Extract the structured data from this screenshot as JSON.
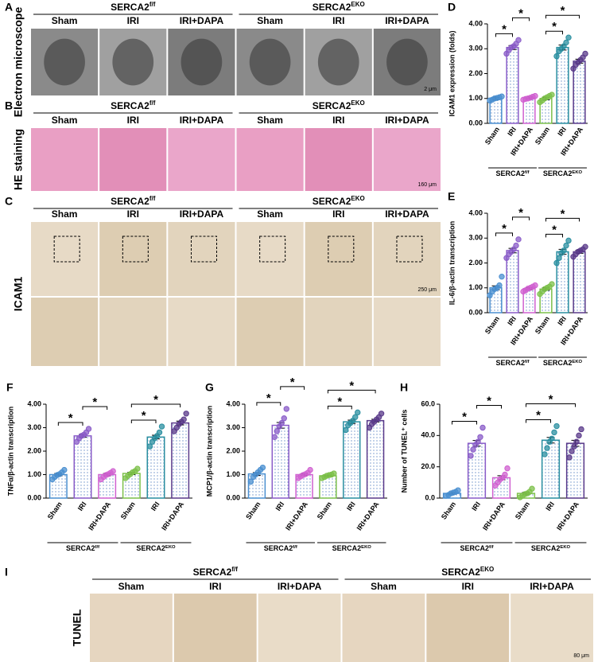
{
  "panels": {
    "A": {
      "letter": "A",
      "side": "Electron microscope",
      "scale": "2 μm"
    },
    "B": {
      "letter": "B",
      "side": "HE staining",
      "scale": "160 μm"
    },
    "C": {
      "letter": "C",
      "side": "ICAM1",
      "scale": "250 μm"
    },
    "I": {
      "letter": "I",
      "side": "TUNEL",
      "scale": "80 μm"
    }
  },
  "groups": [
    {
      "name": "SERCA2",
      "sup": "f/f"
    },
    {
      "name": "SERCA2",
      "sup": "EKO"
    }
  ],
  "conditions": [
    "Sham",
    "IRI",
    "IRI+DAPA"
  ],
  "chart_data": [
    {
      "type": "bar",
      "letter": "D",
      "ylabel": "ICAM1 expression (folds)",
      "categories": [
        "Sham",
        "IRI",
        "IRI+DAPA",
        "Sham",
        "IRI",
        "IRI+DAPA"
      ],
      "groups": [
        {
          "name": "SERCA2",
          "sup": "f/f"
        },
        {
          "name": "SERCA2",
          "sup": "EKO"
        }
      ],
      "colors": [
        "#4a8fd0",
        "#8a5cc8",
        "#d060d0",
        "#7cc04a",
        "#2a8fa0",
        "#5a3a8a"
      ],
      "values": [
        1.0,
        3.05,
        1.02,
        1.0,
        3.05,
        2.5
      ],
      "errors": [
        0.05,
        0.08,
        0.04,
        0.05,
        0.1,
        0.08
      ],
      "points": [
        [
          0.92,
          0.95,
          1.0,
          1.02,
          1.05,
          1.08
        ],
        [
          2.8,
          2.95,
          3.05,
          3.1,
          3.2,
          3.35
        ],
        [
          0.95,
          0.98,
          1.0,
          1.03,
          1.07,
          1.1
        ],
        [
          0.85,
          0.92,
          1.0,
          1.05,
          1.1,
          1.15
        ],
        [
          2.7,
          2.9,
          3.0,
          3.1,
          3.25,
          3.45
        ],
        [
          2.2,
          2.35,
          2.45,
          2.55,
          2.65,
          2.8
        ]
      ],
      "ylim": [
        0,
        4
      ],
      "yticks": [
        {
          "value": 0,
          "label": "0.00"
        },
        {
          "value": 1,
          "label": "1.00"
        },
        {
          "value": 2,
          "label": "2.00"
        },
        {
          "value": 3,
          "label": "3.00"
        },
        {
          "value": 4,
          "label": "4.00"
        }
      ],
      "brackets": [
        {
          "from": 0,
          "to": 1,
          "label": "*"
        },
        {
          "from": 1,
          "to": 2,
          "label": "*"
        },
        {
          "from": 3,
          "to": 4,
          "label": "*"
        },
        {
          "from": 3,
          "to": 5,
          "label": "*"
        }
      ]
    },
    {
      "type": "bar",
      "letter": "E",
      "ylabel": "IL-6/β-actin transcription",
      "categories": [
        "Sham",
        "IRI",
        "IRI+DAPA",
        "Sham",
        "IRI",
        "IRI+DAPA"
      ],
      "groups": [
        {
          "name": "SERCA2",
          "sup": "f/f"
        },
        {
          "name": "SERCA2",
          "sup": "EKO"
        }
      ],
      "colors": [
        "#4a8fd0",
        "#8a5cc8",
        "#d060d0",
        "#7cc04a",
        "#2a8fa0",
        "#5a3a8a"
      ],
      "values": [
        1.0,
        2.5,
        0.97,
        0.95,
        2.45,
        2.45
      ],
      "errors": [
        0.08,
        0.09,
        0.04,
        0.05,
        0.1,
        0.06
      ],
      "points": [
        [
          0.7,
          0.85,
          0.95,
          1.0,
          1.1,
          1.45
        ],
        [
          2.2,
          2.35,
          2.45,
          2.55,
          2.7,
          2.95
        ],
        [
          0.85,
          0.9,
          0.97,
          1.0,
          1.05,
          1.1
        ],
        [
          0.75,
          0.85,
          0.95,
          1.0,
          1.05,
          1.15
        ],
        [
          2.0,
          2.2,
          2.4,
          2.5,
          2.7,
          2.9
        ],
        [
          2.25,
          2.35,
          2.45,
          2.5,
          2.55,
          2.65
        ]
      ],
      "ylim": [
        0,
        4
      ],
      "yticks": [
        {
          "value": 0,
          "label": "0.00"
        },
        {
          "value": 1,
          "label": "1.00"
        },
        {
          "value": 2,
          "label": "2.00"
        },
        {
          "value": 3,
          "label": "3.00"
        },
        {
          "value": 4,
          "label": "4.00"
        }
      ],
      "brackets": [
        {
          "from": 0,
          "to": 1,
          "label": "*"
        },
        {
          "from": 1,
          "to": 2,
          "label": "*"
        },
        {
          "from": 3,
          "to": 4,
          "label": "*"
        },
        {
          "from": 3,
          "to": 5,
          "label": "*"
        }
      ]
    },
    {
      "type": "bar",
      "letter": "F",
      "ylabel": "TNFα/β-actin transcription",
      "categories": [
        "Sham",
        "IRI",
        "IRI+DAPA",
        "Sham",
        "IRI",
        "IRI+DAPA"
      ],
      "groups": [
        {
          "name": "SERCA2",
          "sup": "f/f"
        },
        {
          "name": "SERCA2",
          "sup": "EKO"
        }
      ],
      "colors": [
        "#4a8fd0",
        "#8a5cc8",
        "#d060d0",
        "#7cc04a",
        "#2a8fa0",
        "#5a3a8a"
      ],
      "values": [
        1.0,
        2.65,
        1.0,
        1.05,
        2.6,
        3.2
      ],
      "errors": [
        0.05,
        0.06,
        0.05,
        0.05,
        0.08,
        0.08
      ],
      "points": [
        [
          0.8,
          0.9,
          0.98,
          1.02,
          1.1,
          1.2
        ],
        [
          2.4,
          2.55,
          2.65,
          2.7,
          2.8,
          2.95
        ],
        [
          0.8,
          0.9,
          0.98,
          1.02,
          1.08,
          1.15
        ],
        [
          0.85,
          0.95,
          1.02,
          1.1,
          1.15,
          1.25
        ],
        [
          2.2,
          2.4,
          2.55,
          2.65,
          2.8,
          3.05
        ],
        [
          2.85,
          3.0,
          3.15,
          3.25,
          3.35,
          3.6
        ]
      ],
      "ylim": [
        0,
        4
      ],
      "yticks": [
        {
          "value": 0,
          "label": "0.00"
        },
        {
          "value": 1,
          "label": "1.00"
        },
        {
          "value": 2,
          "label": "2.00"
        },
        {
          "value": 3,
          "label": "3.00"
        },
        {
          "value": 4,
          "label": "4.00"
        }
      ],
      "brackets": [
        {
          "from": 0,
          "to": 1,
          "label": "*"
        },
        {
          "from": 1,
          "to": 2,
          "label": "*"
        },
        {
          "from": 3,
          "to": 4,
          "label": "*"
        },
        {
          "from": 3,
          "to": 5,
          "label": "*"
        }
      ]
    },
    {
      "type": "bar",
      "letter": "G",
      "ylabel": "MCP1/β-actin transcription",
      "categories": [
        "Sham",
        "IRI",
        "IRI+DAPA",
        "Sham",
        "IRI",
        "IRI+DAPA"
      ],
      "groups": [
        {
          "name": "SERCA2",
          "sup": "f/f"
        },
        {
          "name": "SERCA2",
          "sup": "EKO"
        }
      ],
      "colors": [
        "#4a8fd0",
        "#8a5cc8",
        "#d060d0",
        "#7cc04a",
        "#2a8fa0",
        "#5a3a8a"
      ],
      "values": [
        1.03,
        3.1,
        1.0,
        0.95,
        3.25,
        3.3
      ],
      "errors": [
        0.06,
        0.12,
        0.04,
        0.03,
        0.07,
        0.06
      ],
      "points": [
        [
          0.7,
          0.9,
          1.0,
          1.1,
          1.2,
          1.3
        ],
        [
          2.6,
          2.85,
          3.05,
          3.2,
          3.4,
          3.8
        ],
        [
          0.85,
          0.92,
          0.98,
          1.02,
          1.08,
          1.2
        ],
        [
          0.85,
          0.9,
          0.95,
          0.98,
          1.0,
          1.05
        ],
        [
          2.9,
          3.1,
          3.2,
          3.3,
          3.45,
          3.65
        ],
        [
          3.0,
          3.15,
          3.25,
          3.35,
          3.45,
          3.6
        ]
      ],
      "ylim": [
        0,
        4
      ],
      "yticks": [
        {
          "value": 0,
          "label": "0.00"
        },
        {
          "value": 1,
          "label": "1.00"
        },
        {
          "value": 2,
          "label": "2.00"
        },
        {
          "value": 3,
          "label": "3.00"
        },
        {
          "value": 4,
          "label": "4.00"
        }
      ],
      "brackets": [
        {
          "from": 0,
          "to": 1,
          "label": "*"
        },
        {
          "from": 1,
          "to": 2,
          "label": "*"
        },
        {
          "from": 3,
          "to": 4,
          "label": "*"
        },
        {
          "from": 3,
          "to": 5,
          "label": "*"
        }
      ]
    },
    {
      "type": "bar",
      "letter": "H",
      "ylabel": "Number of TUNEL⁺ cells",
      "categories": [
        "Sham",
        "IRI",
        "IRI+DAPA",
        "Sham",
        "IRI",
        "IRI+DAPA"
      ],
      "groups": [
        {
          "name": "SERCA2",
          "sup": "f/f"
        },
        {
          "name": "SERCA2",
          "sup": "EKO"
        }
      ],
      "colors": [
        "#4a8fd0",
        "#8a5cc8",
        "#d060d0",
        "#7cc04a",
        "#2a8fa0",
        "#5a3a8a"
      ],
      "values": [
        3,
        35,
        13,
        3,
        37,
        35
      ],
      "errors": [
        0.5,
        1.8,
        1.3,
        0.6,
        1.8,
        1.9
      ],
      "points": [
        [
          1.5,
          2,
          3,
          3.5,
          4,
          5
        ],
        [
          27,
          31,
          34,
          36,
          39,
          45
        ],
        [
          8,
          10,
          12,
          13,
          15,
          19
        ],
        [
          0.5,
          1.5,
          2.5,
          3,
          4,
          6
        ],
        [
          28,
          32,
          36,
          38,
          42,
          46
        ],
        [
          26,
          30,
          33,
          36,
          40,
          44
        ]
      ],
      "ylim": [
        0,
        60
      ],
      "yticks": [
        {
          "value": 0,
          "label": "0.0"
        },
        {
          "value": 20,
          "label": "20.0"
        },
        {
          "value": 40,
          "label": "40.0"
        },
        {
          "value": 60,
          "label": "60.0"
        }
      ],
      "brackets": [
        {
          "from": 0,
          "to": 1,
          "label": "*"
        },
        {
          "from": 1,
          "to": 2,
          "label": "*"
        },
        {
          "from": 3,
          "to": 4,
          "label": "*"
        },
        {
          "from": 3,
          "to": 5,
          "label": "*"
        }
      ]
    }
  ]
}
